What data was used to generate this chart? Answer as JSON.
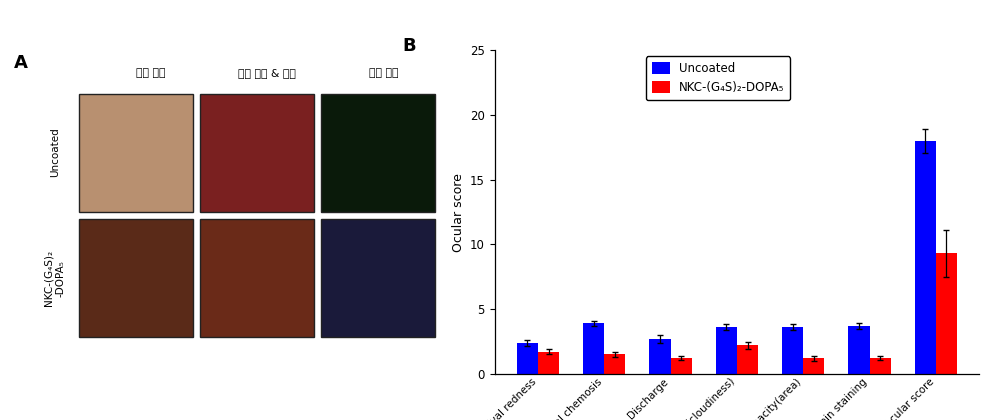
{
  "categories": [
    "Conjunctival redness",
    "Conjunctival chemosis",
    "Discharge",
    "Corneal opacity(cloudiness)",
    "Corneal opacity(area)",
    "Fluorescein staining",
    "Total ocular score"
  ],
  "uncoated_values": [
    2.4,
    3.9,
    2.7,
    3.6,
    3.6,
    3.7,
    18.0
  ],
  "coated_values": [
    1.7,
    1.5,
    1.2,
    2.2,
    1.2,
    1.2,
    9.3
  ],
  "uncoated_errors": [
    0.25,
    0.2,
    0.3,
    0.25,
    0.25,
    0.25,
    0.9
  ],
  "coated_errors": [
    0.2,
    0.2,
    0.15,
    0.25,
    0.2,
    0.15,
    1.8
  ],
  "uncoated_color": "#0000FF",
  "coated_color": "#FF0000",
  "ylabel": "Ocular score",
  "ylim": [
    0,
    25
  ],
  "yticks": [
    0,
    5,
    10,
    15,
    20,
    25
  ],
  "legend_uncoated": "Uncoated",
  "legend_coated": "NKC-(G₄S)₂-DOPA₅",
  "panel_a_label": "A",
  "panel_b_label": "B",
  "col_headers": [
    "가막 혼탁",
    "결막 부종 & 충혁",
    "가막 손상"
  ],
  "row_headers_rotated": [
    "Uncoated",
    "NKC-(G₄S)₂\n-DOPA₅"
  ],
  "bar_width": 0.32,
  "img_colors_row0": [
    "#b89070",
    "#7a2020",
    "#0a1a0a"
  ],
  "img_colors_row1": [
    "#5a2a18",
    "#6a2a18",
    "#1a1a3a"
  ]
}
